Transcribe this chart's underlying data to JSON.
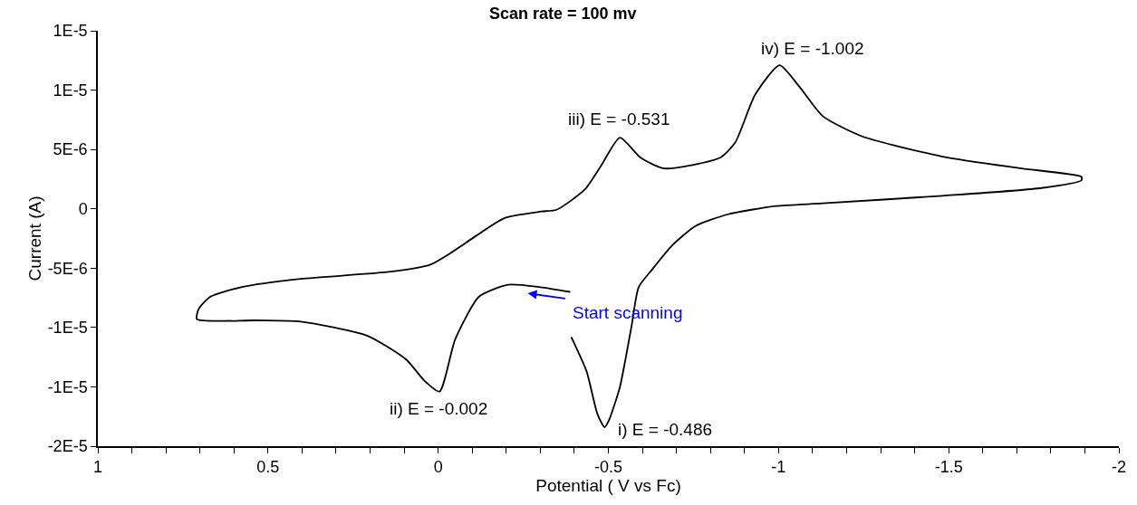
{
  "chart_data": {
    "type": "line",
    "title": "Scan rate = 100 mv",
    "xlabel": "Potential ( V vs Fc)",
    "ylabel": "Current (A)",
    "xlim": [
      1,
      -2
    ],
    "ylim": [
      -2e-05,
      1.5e-05
    ],
    "xticks": [
      1,
      {
        "value": 0.9,
        "label": null
      },
      {
        "value": 0.8,
        "label": null
      },
      {
        "value": 0.7,
        "label": null
      },
      {
        "value": 0.6,
        "label": null
      },
      0.5,
      {
        "value": 0.4,
        "label": null
      },
      {
        "value": 0.3,
        "label": null
      },
      {
        "value": 0.2,
        "label": null
      },
      {
        "value": 0.1,
        "label": null
      },
      0,
      {
        "value": -0.1,
        "label": null
      },
      {
        "value": -0.2,
        "label": null
      },
      {
        "value": -0.3,
        "label": null
      },
      {
        "value": -0.4,
        "label": null
      },
      -0.5,
      {
        "value": -0.6,
        "label": null
      },
      {
        "value": -0.7,
        "label": null
      },
      {
        "value": -0.8,
        "label": null
      },
      {
        "value": -0.9,
        "label": null
      },
      -1,
      {
        "value": -1.1,
        "label": null
      },
      {
        "value": -1.2,
        "label": null
      },
      {
        "value": -1.3,
        "label": null
      },
      {
        "value": -1.4,
        "label": null
      },
      -1.5,
      {
        "value": -1.6,
        "label": null
      },
      {
        "value": -1.7,
        "label": null
      },
      {
        "value": -1.8,
        "label": null
      },
      {
        "value": -1.9,
        "label": null
      },
      -2
    ],
    "yticks": [
      {
        "value": 1.5e-05,
        "label": "1E-5"
      },
      {
        "value": 1e-05,
        "label": "1E-5"
      },
      {
        "value": 5e-06,
        "label": "5E-6"
      },
      0,
      {
        "value": -5e-06,
        "label": "-5E-6"
      },
      {
        "value": -1e-05,
        "label": "-1E-5"
      },
      {
        "value": -1.5e-05,
        "label": "-1E-5"
      },
      {
        "value": -2e-05,
        "label": "-2E-5"
      }
    ],
    "marker": "none",
    "line_style": "solid",
    "series": [
      {
        "color": "#000000",
        "x": [
          -0.388,
          -0.3,
          -0.205,
          -0.12,
          -0.05,
          -0.004,
          0.04,
          0.094,
          0.208,
          0.404,
          0.536,
          0.709,
          0.703,
          0.669,
          0.579,
          0.404,
          0.139,
          0.023,
          -0.038,
          -0.11,
          -0.197,
          -0.303,
          -0.348,
          -0.43,
          -0.478,
          -0.534,
          -0.595,
          -0.664,
          -0.828,
          -0.873,
          -0.931,
          -1.003,
          -1.061,
          -1.13,
          -1.246,
          -1.482,
          -1.715,
          -1.89,
          -1.89,
          -1.773,
          -1.482,
          -1.13,
          -0.992,
          -0.852,
          -0.756,
          -0.687,
          -0.629,
          -0.589,
          -0.568,
          -0.534,
          -0.502,
          -0.489,
          -0.468,
          -0.436,
          -0.391
        ],
        "values": [
          -7e-06,
          -6.6e-06,
          -6.4e-06,
          -7.4e-06,
          -1.1e-05,
          -1.54e-05,
          -1.45e-05,
          -1.27e-05,
          -1.07e-05,
          -9.5e-06,
          -9.4e-06,
          -9.3e-06,
          -8.4e-06,
          -7.4e-06,
          -6.6e-06,
          -5.9e-06,
          -5.3e-06,
          -4.7e-06,
          -3.7e-06,
          -2.3e-06,
          -7.6e-07,
          -2.3e-07,
          -8e-08,
          1.6e-06,
          3.6e-06,
          6e-06,
          4.3e-06,
          3.4e-06,
          4.3e-06,
          5.6e-06,
          9.6e-06,
          1.21e-05,
          1.03e-05,
          7.8e-06,
          6.1e-06,
          4.4e-06,
          3.4e-06,
          2.7e-06,
          2.4e-06,
          1.75e-06,
          1.1e-06,
          4.6e-07,
          2.3e-07,
          -4.6e-07,
          -1.45e-06,
          -3.1e-06,
          -5.1e-06,
          -6.6e-06,
          -9.9e-06,
          -1.5e-05,
          -1.78e-05,
          -1.84e-05,
          -1.73e-05,
          -1.37e-05,
          -1.08e-05
        ]
      }
    ],
    "annotations": [
      {
        "text": "i) E = -0.486",
        "x": -0.486,
        "y": -1.84e-05
      },
      {
        "text": "ii) E = -0.002",
        "x": -0.002,
        "y": -1.54e-05
      },
      {
        "text": "iii) E = -0.531",
        "x": -0.531,
        "y": 6e-06
      },
      {
        "text": "iv) E = -1.002",
        "x": -1.002,
        "y": 1.21e-05
      },
      "Start scanning"
    ]
  }
}
